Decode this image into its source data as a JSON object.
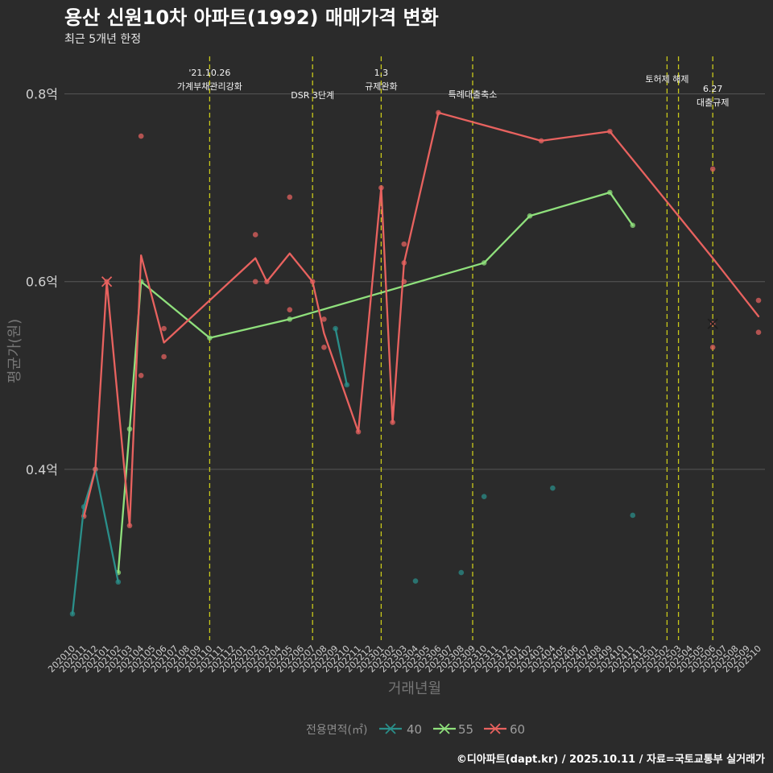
{
  "colors": {
    "background": "#2b2b2b",
    "grid": "#575757",
    "event_line": "#c9c91a"
  },
  "chart_data": {
    "type": "line",
    "title": "용산 신원10차 아파트(1992) 매매가격 변화",
    "subtitle": "최근 5개년 한정",
    "caption": "©디아파트(dapt.kr) / 2025.10.11 / 자료=국토교통부 실거래가",
    "xlabel": "거래년월",
    "ylabel": "평균가(원)",
    "ylim": [
      0.218,
      0.84
    ],
    "grid": "horizontal major",
    "yticks": [
      {
        "value": 0.4,
        "label": "0.4억"
      },
      {
        "value": 0.6,
        "label": "0.6억"
      },
      {
        "value": 0.8,
        "label": "0.8억"
      }
    ],
    "categories": [
      "202010",
      "202011",
      "202012",
      "202101",
      "202102",
      "202103",
      "202104",
      "202105",
      "202106",
      "202107",
      "202108",
      "202109",
      "202110",
      "202111",
      "202112",
      "202201",
      "202202",
      "202203",
      "202204",
      "202205",
      "202206",
      "202207",
      "202208",
      "202209",
      "202210",
      "202211",
      "202212",
      "202301",
      "202302",
      "202303",
      "202304",
      "202305",
      "202306",
      "202307",
      "202308",
      "202309",
      "202310",
      "202311",
      "202312",
      "202401",
      "202402",
      "202403",
      "202404",
      "202405",
      "202406",
      "202407",
      "202408",
      "202409",
      "202410",
      "202411",
      "202412",
      "202501",
      "202502",
      "202503",
      "202504",
      "202505",
      "202506",
      "202507",
      "202508",
      "202509",
      "202510"
    ],
    "legend": {
      "title": "전용면적(㎡)",
      "position": "bottom"
    },
    "annotations": [
      {
        "month": "202110",
        "lines": [
          "'21.10.26",
          "가계부채관리강화"
        ]
      },
      {
        "month": "202207",
        "lines": [
          "DSR 3단계"
        ]
      },
      {
        "month": "202301",
        "lines": [
          "1.3",
          "규제완화"
        ]
      },
      {
        "month": "202309",
        "lines": [
          "특례대출축소"
        ]
      },
      {
        "month": "202502",
        "lines": [
          "토허제 해제"
        ]
      },
      {
        "month": "202503",
        "lines": []
      },
      {
        "month": "202506",
        "lines": [
          "6.27",
          "대출규제"
        ]
      }
    ],
    "series": [
      {
        "name": "40",
        "color": "#2a8f8a",
        "lines": [
          [
            {
              "month": "202010",
              "value": 0.246
            },
            {
              "month": "202011",
              "value": 0.36
            },
            {
              "month": "202012",
              "value": 0.4
            },
            {
              "month": "202102",
              "value": 0.28
            }
          ],
          [
            {
              "month": "202209",
              "value": 0.55
            },
            {
              "month": "202210",
              "value": 0.49
            }
          ]
        ],
        "points": [
          {
            "month": "202010",
            "value": 0.246
          },
          {
            "month": "202011",
            "value": 0.36
          },
          {
            "month": "202012",
            "value": 0.4
          },
          {
            "month": "202102",
            "value": 0.28
          },
          {
            "month": "202209",
            "value": 0.55
          },
          {
            "month": "202210",
            "value": 0.49
          },
          {
            "month": "202304",
            "value": 0.281
          },
          {
            "month": "202308",
            "value": 0.29
          },
          {
            "month": "202310",
            "value": 0.371
          },
          {
            "month": "202404",
            "value": 0.38
          },
          {
            "month": "202411",
            "value": 0.351
          }
        ],
        "markers": []
      },
      {
        "name": "55",
        "color": "#8fe07c",
        "lines": [
          [
            {
              "month": "202102",
              "value": 0.29
            },
            {
              "month": "202103",
              "value": 0.443
            },
            {
              "month": "202104",
              "value": 0.6
            },
            {
              "month": "202110",
              "value": 0.54
            },
            {
              "month": "202205",
              "value": 0.56
            },
            {
              "month": "202310",
              "value": 0.62
            },
            {
              "month": "202402",
              "value": 0.67
            },
            {
              "month": "202409",
              "value": 0.695
            },
            {
              "month": "202411",
              "value": 0.66
            }
          ]
        ],
        "points": [
          {
            "month": "202102",
            "value": 0.29
          },
          {
            "month": "202103",
            "value": 0.443
          },
          {
            "month": "202104",
            "value": 0.6
          },
          {
            "month": "202110",
            "value": 0.54
          },
          {
            "month": "202205",
            "value": 0.56
          },
          {
            "month": "202310",
            "value": 0.62
          },
          {
            "month": "202402",
            "value": 0.67
          },
          {
            "month": "202409",
            "value": 0.695
          },
          {
            "month": "202411",
            "value": 0.66
          }
        ],
        "markers": []
      },
      {
        "name": "60",
        "color": "#e8625f",
        "lines": [
          [
            {
              "month": "202011",
              "value": 0.35
            },
            {
              "month": "202012",
              "value": 0.4
            },
            {
              "month": "202101",
              "value": 0.6
            },
            {
              "month": "202103",
              "value": 0.34
            },
            {
              "month": "202104",
              "value": 0.628
            },
            {
              "month": "202106",
              "value": 0.535
            },
            {
              "month": "202202",
              "value": 0.625
            },
            {
              "month": "202203",
              "value": 0.6
            },
            {
              "month": "202205",
              "value": 0.63
            },
            {
              "month": "202207",
              "value": 0.6
            },
            {
              "month": "202208",
              "value": 0.545
            },
            {
              "month": "202211",
              "value": 0.44
            },
            {
              "month": "202301",
              "value": 0.7
            },
            {
              "month": "202302",
              "value": 0.45
            },
            {
              "month": "202303",
              "value": 0.62
            },
            {
              "month": "202306",
              "value": 0.78
            },
            {
              "month": "202403",
              "value": 0.75
            },
            {
              "month": "202409",
              "value": 0.76
            },
            {
              "month": "202506",
              "value": 0.625
            },
            {
              "month": "202510",
              "value": 0.563
            }
          ]
        ],
        "points": [
          {
            "month": "202011",
            "value": 0.35
          },
          {
            "month": "202012",
            "value": 0.4
          },
          {
            "month": "202101",
            "value": 0.6
          },
          {
            "month": "202103",
            "value": 0.34
          },
          {
            "month": "202104",
            "value": 0.755
          },
          {
            "month": "202104",
            "value": 0.5
          },
          {
            "month": "202106",
            "value": 0.55
          },
          {
            "month": "202106",
            "value": 0.52
          },
          {
            "month": "202202",
            "value": 0.65
          },
          {
            "month": "202202",
            "value": 0.6
          },
          {
            "month": "202203",
            "value": 0.6
          },
          {
            "month": "202205",
            "value": 0.69
          },
          {
            "month": "202205",
            "value": 0.57
          },
          {
            "month": "202207",
            "value": 0.6
          },
          {
            "month": "202208",
            "value": 0.56
          },
          {
            "month": "202208",
            "value": 0.53
          },
          {
            "month": "202211",
            "value": 0.44
          },
          {
            "month": "202301",
            "value": 0.7
          },
          {
            "month": "202302",
            "value": 0.45
          },
          {
            "month": "202303",
            "value": 0.64
          },
          {
            "month": "202303",
            "value": 0.62
          },
          {
            "month": "202303",
            "value": 0.6
          },
          {
            "month": "202306",
            "value": 0.78
          },
          {
            "month": "202403",
            "value": 0.75
          },
          {
            "month": "202409",
            "value": 0.76
          },
          {
            "month": "202506",
            "value": 0.72
          },
          {
            "month": "202506",
            "value": 0.555
          },
          {
            "month": "202506",
            "value": 0.53
          },
          {
            "month": "202510",
            "value": 0.58
          },
          {
            "month": "202510",
            "value": 0.546
          }
        ],
        "markers": [
          {
            "month": "202101",
            "value": 0.6,
            "color": "#e8625f"
          },
          {
            "month": "202506",
            "value": 0.555,
            "color": "#1e1e1e"
          }
        ]
      }
    ]
  }
}
